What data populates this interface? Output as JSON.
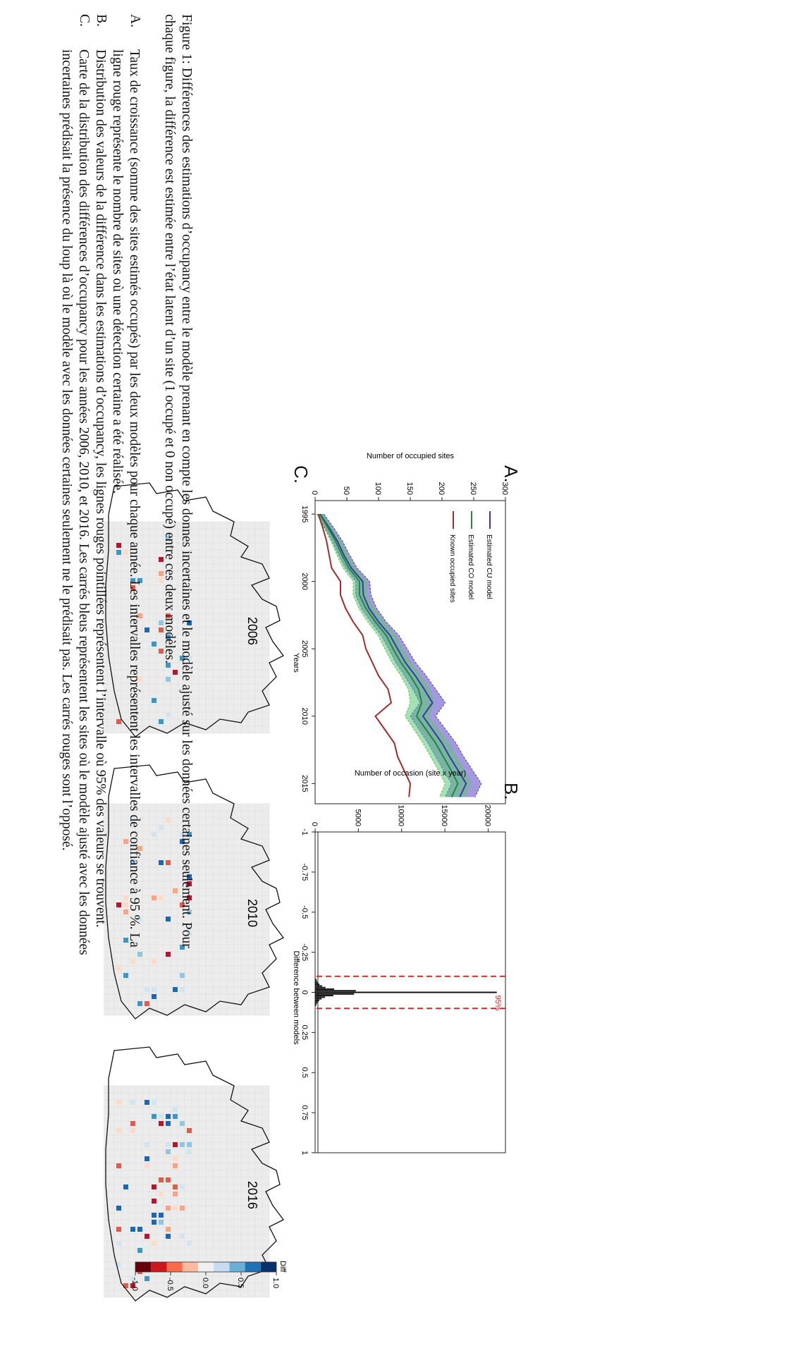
{
  "panels": {
    "a_letter": "A.",
    "b_letter": "B.",
    "c_letter": "C."
  },
  "map_years": [
    "2006",
    "2010",
    "2016"
  ],
  "legend_scale": {
    "title": "Diff",
    "ticks": [
      "1.0",
      "0.5",
      "0.0",
      "-0.5",
      "-1.0"
    ],
    "colors": [
      "#08306b",
      "#2171b5",
      "#6baed6",
      "#c6dbef",
      "#f0f0f0",
      "#fcbba1",
      "#fb6a4a",
      "#cb181d",
      "#67000d"
    ]
  },
  "caption": {
    "line1": "Figure 1: Différences des estimations d’occupancy entre le modèle prenant en compte les donnes incertaines et le modèle ajusté sur les données certaines seulement. Pour",
    "line2": "chaque figure, la différence est estimée entre l’état latent d’un site (1 occupé et 0 non occupé) entre ces deux modèles.",
    "items": [
      {
        "letter": "A.",
        "line1": "Taux de croissance (somme des sites estimés occupés) par les deux modèles pour chaque année. Les intervalles représentent les intervalles de confiance à 95 %. La",
        "line2": "ligne rouge représente le nombre de sites où une détection certaine a été réalisée."
      },
      {
        "letter": "B.",
        "line1": "Distribution des valeurs de la différence dans les estimations d’occupancy, les lignes rouges pointillées représentent l’intervalle où 95% des valeurs se trouvent.",
        "line2": ""
      },
      {
        "letter": "C.",
        "line1": "Carte de la distribution des différences d’occupancy pour les années 2006, 2010, et 2016. Les carrés bleus représentent les sites où le modèle ajusté avec les données",
        "line2": "incertaines prédisait la présence du loup là où le modèle avec les données certaines seulement ne le prédisait pas. Les carrés rouges sont l’opposé."
      }
    ]
  },
  "chart_data": [
    {
      "type": "line",
      "panel": "A.",
      "title": "",
      "xlabel": "Years",
      "ylabel": "Number of occupied sites",
      "xlim": [
        1994,
        2016.5
      ],
      "ylim": [
        0,
        300
      ],
      "xticks": [
        1995,
        2000,
        2005,
        2010,
        2015
      ],
      "yticks": [
        0,
        50,
        100,
        150,
        200,
        250,
        300
      ],
      "legend_position": "top-left",
      "x": [
        1995,
        1996,
        1997,
        1998,
        1999,
        2000,
        2001,
        2002,
        2003,
        2004,
        2005,
        2006,
        2007,
        2008,
        2009,
        2010,
        2011,
        2012,
        2013,
        2014,
        2015,
        2016
      ],
      "series": [
        {
          "name": "Estimated CU model",
          "color": "#3b3b9a",
          "values": [
            8,
            22,
            35,
            45,
            57,
            75,
            76,
            85,
            100,
            118,
            130,
            142,
            158,
            172,
            185,
            170,
            185,
            200,
            212,
            225,
            238,
            228
          ],
          "lower": [
            3,
            15,
            27,
            37,
            48,
            64,
            64,
            73,
            88,
            104,
            116,
            127,
            141,
            154,
            165,
            150,
            164,
            178,
            190,
            202,
            215,
            205
          ],
          "upper": [
            14,
            29,
            43,
            54,
            66,
            86,
            88,
            97,
            112,
            132,
            145,
            158,
            175,
            190,
            205,
            190,
            206,
            222,
            234,
            248,
            262,
            252
          ]
        },
        {
          "name": "Estimated CO model",
          "color": "#1f8a3b",
          "values": [
            7,
            20,
            32,
            42,
            53,
            70,
            70,
            80,
            95,
            112,
            123,
            135,
            150,
            163,
            168,
            160,
            175,
            190,
            202,
            214,
            225,
            215
          ],
          "lower": [
            3,
            14,
            25,
            34,
            44,
            60,
            60,
            69,
            83,
            99,
            110,
            121,
            135,
            147,
            150,
            142,
            156,
            170,
            182,
            194,
            205,
            196
          ],
          "upper": [
            12,
            27,
            40,
            51,
            63,
            81,
            81,
            92,
            108,
            126,
            137,
            150,
            166,
            180,
            187,
            178,
            194,
            210,
            222,
            234,
            245,
            235
          ]
        },
        {
          "name": "Known occupied sites",
          "color": "#a52a2a",
          "values": [
            5,
            12,
            18,
            22,
            26,
            40,
            40,
            48,
            60,
            75,
            80,
            90,
            100,
            115,
            120,
            95,
            110,
            125,
            130,
            140,
            150,
            148
          ]
        }
      ]
    },
    {
      "type": "bar",
      "panel": "B.",
      "title": "",
      "xlabel": "Difference between models",
      "ylabel": "Number of occasion (site x year)",
      "xlim": [
        -1,
        1
      ],
      "ylim": [
        0,
        22000
      ],
      "xticks": [
        "-1",
        "-0.75",
        "-0.5",
        "-0.25",
        "0",
        "0.25",
        "0.5",
        "0.75",
        "1"
      ],
      "yticks": [
        0,
        5000,
        10000,
        15000,
        20000
      ],
      "annotation": "95%",
      "interval_95": [
        -0.1,
        0.1
      ],
      "x": [
        -0.08,
        -0.07,
        -0.06,
        -0.05,
        -0.04,
        -0.03,
        -0.02,
        -0.01,
        0,
        0.01,
        0.02,
        0.03,
        0.04,
        0.05,
        0.06,
        0.07,
        0.08
      ],
      "values": [
        150,
        220,
        350,
        500,
        800,
        1200,
        2200,
        4700,
        21000,
        4500,
        2100,
        1150,
        750,
        480,
        330,
        210,
        140
      ]
    }
  ]
}
